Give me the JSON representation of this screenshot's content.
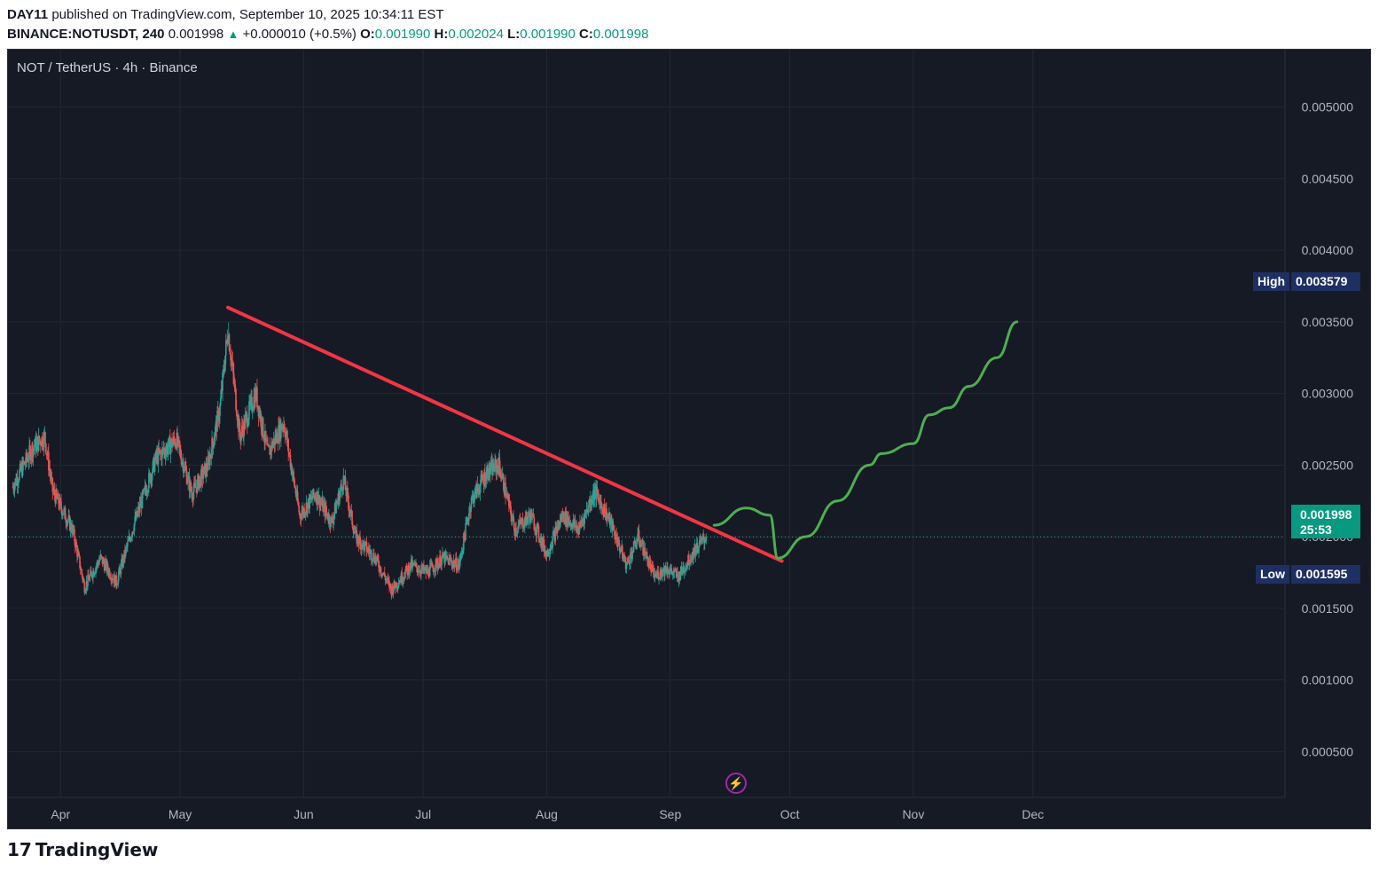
{
  "header": {
    "author": "DAY11",
    "published_text": "published on TradingView.com, September 10, 2025 10:34:11 EST",
    "symbol": "BINANCE:NOTUSDT, 240",
    "last": "0.001998",
    "change_arrow": "▲",
    "change": "+0.000010 (+0.5%)",
    "o_label": "O:",
    "o": "0.001990",
    "h_label": "H:",
    "h": "0.002024",
    "l_label": "L:",
    "l": "0.001990",
    "c_label": "C:",
    "c": "0.001998"
  },
  "chart_title": "NOT / TetherUS · 4h · Binance",
  "badges": {
    "high_label": "High",
    "high_value": "0.003579",
    "low_label": "Low",
    "low_value": "0.001595",
    "current_price": "0.001998",
    "countdown": "25:53"
  },
  "bolt_icon": "lightning-icon",
  "footer": {
    "logo_mark": "17",
    "logo_text": "TradingView"
  },
  "colors": {
    "background": "#161a25",
    "up": "#26a69a",
    "down": "#ef5350",
    "trendline": "#f23645",
    "projection": "#4caf50",
    "grid": "#232734",
    "axis_text": "#b2b5be"
  },
  "chart_data": {
    "type": "candlestick",
    "title": "NOT / TetherUS · 4h · Binance",
    "interval": "4h",
    "y_ticks": [
      "0.005000",
      "0.004500",
      "0.004000",
      "0.003500",
      "0.003000",
      "0.002500",
      "0.002000",
      "0.001500",
      "0.001000",
      "0.000500"
    ],
    "ylim": [
      0.00018,
      0.0054
    ],
    "x_ticks": [
      "Apr",
      "May",
      "Jun",
      "Jul",
      "Aug",
      "Sep",
      "Oct",
      "Nov",
      "Dec"
    ],
    "grid": true,
    "high": 0.003579,
    "low": 0.001595,
    "last": 0.001998,
    "price_path": [
      [
        "2025-03-20",
        0.00235
      ],
      [
        "2025-03-25",
        0.00262
      ],
      [
        "2025-03-28",
        0.0027
      ],
      [
        "2025-03-30",
        0.00232
      ],
      [
        "2025-04-04",
        0.00205
      ],
      [
        "2025-04-07",
        0.00165
      ],
      [
        "2025-04-11",
        0.00185
      ],
      [
        "2025-04-15",
        0.00168
      ],
      [
        "2025-04-19",
        0.00205
      ],
      [
        "2025-04-25",
        0.00255
      ],
      [
        "2025-04-30",
        0.00268
      ],
      [
        "2025-05-04",
        0.0023
      ],
      [
        "2025-05-08",
        0.0025
      ],
      [
        "2025-05-11",
        0.0029
      ],
      [
        "2025-05-13",
        0.00345
      ],
      [
        "2025-05-16",
        0.0027
      ],
      [
        "2025-05-20",
        0.003
      ],
      [
        "2025-05-23",
        0.00258
      ],
      [
        "2025-05-27",
        0.0028
      ],
      [
        "2025-05-31",
        0.00215
      ],
      [
        "2025-06-04",
        0.0023
      ],
      [
        "2025-06-08",
        0.0021
      ],
      [
        "2025-06-11",
        0.0024
      ],
      [
        "2025-06-14",
        0.002
      ],
      [
        "2025-06-19",
        0.00185
      ],
      [
        "2025-06-23",
        0.00163
      ],
      [
        "2025-06-28",
        0.0018
      ],
      [
        "2025-07-02",
        0.00175
      ],
      [
        "2025-07-06",
        0.00185
      ],
      [
        "2025-07-10",
        0.0018
      ],
      [
        "2025-07-13",
        0.00225
      ],
      [
        "2025-07-17",
        0.00245
      ],
      [
        "2025-07-20",
        0.0025
      ],
      [
        "2025-07-24",
        0.00205
      ],
      [
        "2025-07-28",
        0.00215
      ],
      [
        "2025-08-01",
        0.00188
      ],
      [
        "2025-08-05",
        0.00215
      ],
      [
        "2025-08-09",
        0.00205
      ],
      [
        "2025-08-13",
        0.00232
      ],
      [
        "2025-08-17",
        0.0021
      ],
      [
        "2025-08-21",
        0.0018
      ],
      [
        "2025-08-24",
        0.002
      ],
      [
        "2025-08-28",
        0.00172
      ],
      [
        "2025-08-31",
        0.00178
      ],
      [
        "2025-09-03",
        0.00172
      ],
      [
        "2025-09-07",
        0.0019
      ],
      [
        "2025-09-10",
        0.001998
      ]
    ],
    "annotations": [
      {
        "type": "trendline",
        "color": "#f23645",
        "from": [
          "2025-05-13",
          0.0036
        ],
        "to": [
          "2025-09-29",
          0.00183
        ]
      },
      {
        "type": "projection",
        "color": "#4caf50",
        "path": [
          [
            "2025-09-12",
            0.00208
          ],
          [
            "2025-09-20",
            0.0022
          ],
          [
            "2025-09-26",
            0.00215
          ],
          [
            "2025-09-28",
            0.00185
          ],
          [
            "2025-10-05",
            0.002
          ],
          [
            "2025-10-13",
            0.00225
          ],
          [
            "2025-10-21",
            0.0025
          ],
          [
            "2025-10-24",
            0.00258
          ],
          [
            "2025-11-01",
            0.00265
          ],
          [
            "2025-11-05",
            0.00285
          ],
          [
            "2025-11-10",
            0.0029
          ],
          [
            "2025-11-15",
            0.00305
          ],
          [
            "2025-11-22",
            0.00325
          ],
          [
            "2025-11-27",
            0.0035
          ]
        ]
      }
    ]
  }
}
